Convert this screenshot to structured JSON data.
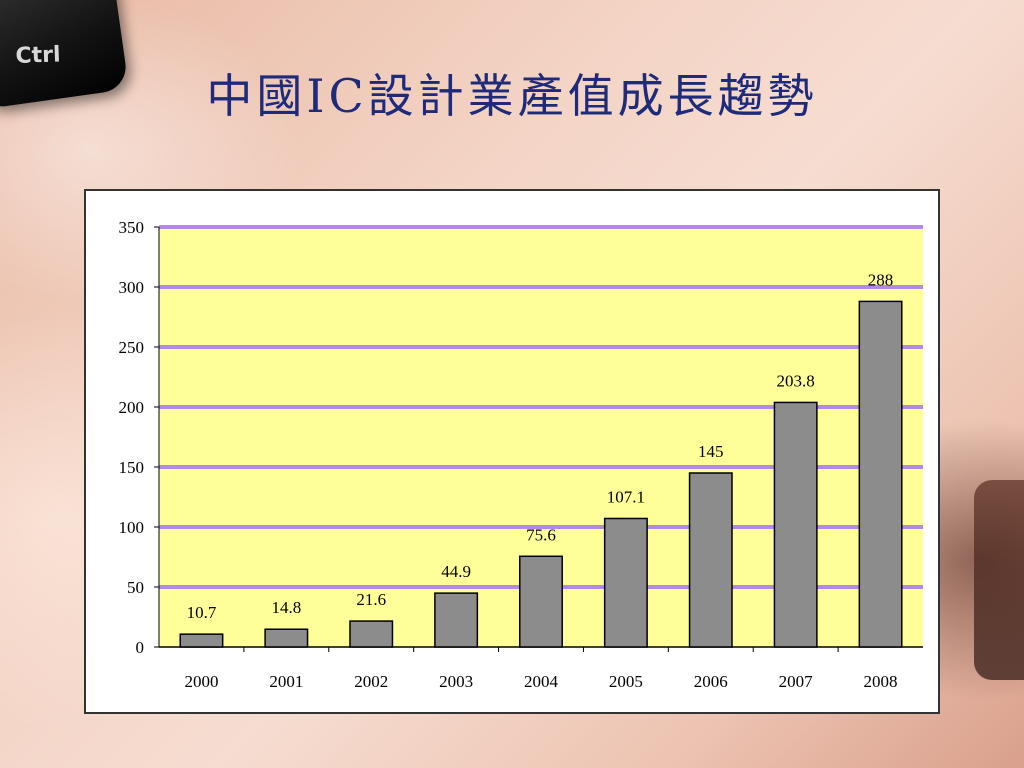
{
  "title": "中國IC設計業產值成長趨勢",
  "decor": {
    "key_label": "Ctrl"
  },
  "colors": {
    "title": "#1e2a7a",
    "plot_background": "#ffff99",
    "gridline": "#b388e6",
    "bar_fill": "#8c8c8c",
    "bar_stroke": "#000000"
  },
  "chart_data": {
    "type": "bar",
    "title": "",
    "xlabel": "",
    "ylabel": "",
    "categories": [
      "2000",
      "2001",
      "2002",
      "2003",
      "2004",
      "2005",
      "2006",
      "2007",
      "2008"
    ],
    "values": [
      10.7,
      14.8,
      21.6,
      44.9,
      75.6,
      107.1,
      145,
      203.8,
      288
    ],
    "data_labels": [
      "10.7",
      "14.8",
      "21.6",
      "44.9",
      "75.6",
      "107.1",
      "145",
      "203.8",
      "288"
    ],
    "ylim": [
      0,
      350
    ],
    "yticks": [
      0,
      50,
      100,
      150,
      200,
      250,
      300,
      350
    ],
    "ytick_labels": [
      "0",
      "50",
      "100",
      "150",
      "200",
      "250",
      "300",
      "350"
    ],
    "grid": true,
    "legend": "none"
  }
}
